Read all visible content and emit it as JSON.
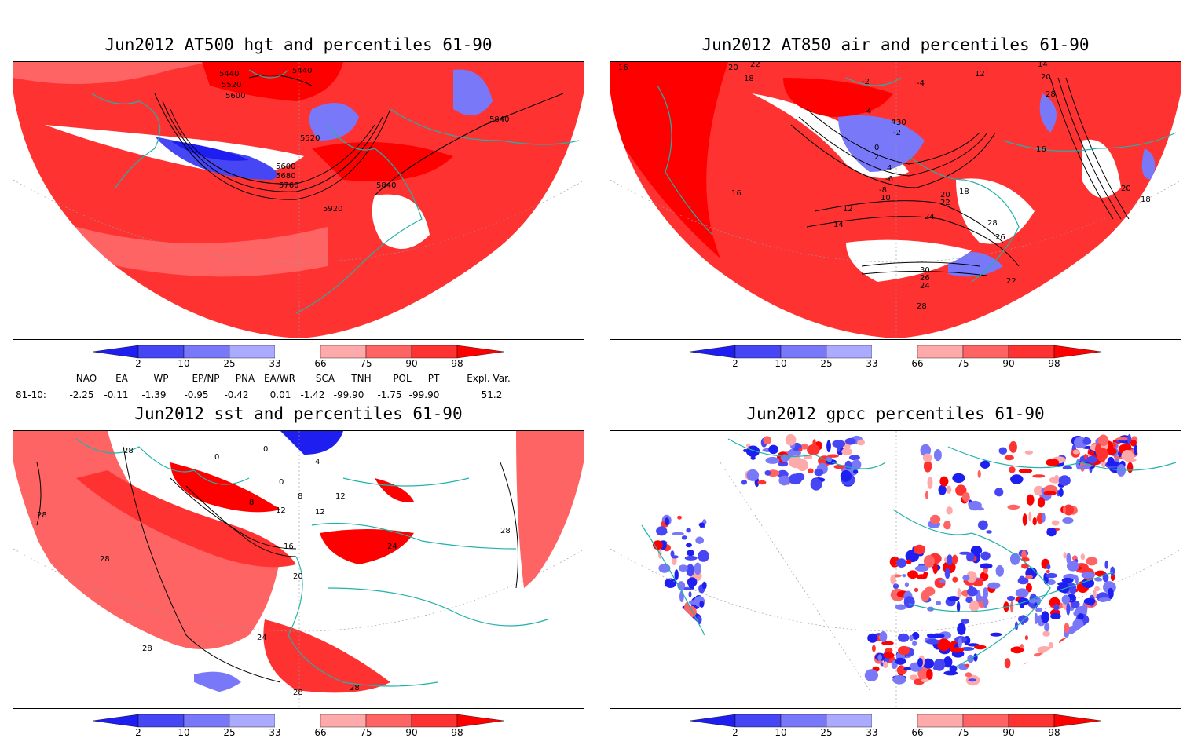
{
  "panels": [
    {
      "id": "p1",
      "title": "Jun2012 AT500 hgt and percentiles 61-90",
      "contour_labels": [
        "5440",
        "5440",
        "5520",
        "5600",
        "5520",
        "5600",
        "5680",
        "5760",
        "5840",
        "5840",
        "5920"
      ]
    },
    {
      "id": "p2",
      "title": "Jun2012 AT850 air and percentiles 61-90",
      "contour_labels": [
        "16",
        "20",
        "22",
        "18",
        "-2",
        "4",
        "-4",
        "12",
        "14",
        "20",
        "28",
        "30",
        "4",
        "-2",
        "0",
        "2",
        "4",
        "-6",
        "-8",
        "10",
        "12",
        "14",
        "16",
        "18",
        "20",
        "22",
        "24",
        "28",
        "26",
        "28",
        "18",
        "16",
        "30",
        "26",
        "24",
        "22",
        "20",
        "18"
      ]
    },
    {
      "id": "p3",
      "title": "Jun2012 sst and percentiles 61-90",
      "contour_labels": [
        "28",
        "0",
        "4",
        "0",
        "12",
        "0",
        "8",
        "12",
        "8",
        "16",
        "12",
        "28",
        "20",
        "24",
        "28",
        "28",
        "28",
        "28",
        "24",
        "28"
      ]
    },
    {
      "id": "p4",
      "title": "Jun2012 gpcc percentiles 61-90",
      "contour_labels": []
    }
  ],
  "colorbar": {
    "labels": [
      "2",
      "10",
      "25",
      "33",
      "66",
      "75",
      "90",
      "98"
    ],
    "colors": [
      "#1e1ef0",
      "#4646f5",
      "#7878f8",
      "#aaaaff",
      "#ffffff",
      "#ffaaaa",
      "#ff6464",
      "#ff3232",
      "#ff0000"
    ]
  },
  "indices": {
    "headers": [
      "NAO",
      "EA",
      "WP",
      "EP/NP",
      "PNA",
      "EA/WR",
      "SCA",
      "TNH",
      "POL",
      "PT",
      "Expl. Var."
    ],
    "row_label": "81-10:",
    "values": [
      "-2.25",
      "-0.11",
      "-1.39",
      "-0.95",
      "-0.42",
      "0.01",
      "-1.42",
      "-99.90",
      "-1.75",
      "-99.90",
      "51.2"
    ]
  }
}
